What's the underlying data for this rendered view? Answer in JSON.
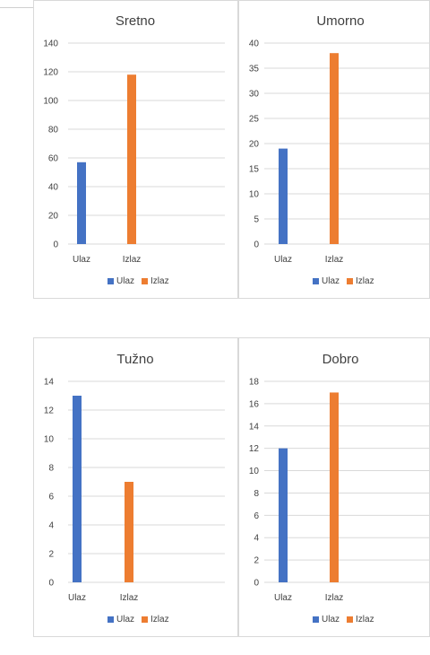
{
  "chart_data": [
    {
      "type": "bar",
      "title": "Sretno",
      "categories": [
        "Ulaz",
        "Izlaz"
      ],
      "values": [
        57,
        118
      ],
      "ylim": [
        0,
        140
      ],
      "yticks": [
        0,
        20,
        40,
        60,
        80,
        100,
        120,
        140
      ],
      "grid": true,
      "legend": "bottom"
    },
    {
      "type": "bar",
      "title": "Umorno",
      "categories": [
        "Ulaz",
        "Izlaz"
      ],
      "values": [
        19,
        38
      ],
      "ylim": [
        0,
        40
      ],
      "yticks": [
        0,
        5,
        10,
        15,
        20,
        25,
        30,
        35,
        40
      ],
      "grid": true,
      "legend": "bottom"
    },
    {
      "type": "bar",
      "title": "Tužno",
      "categories": [
        "Ulaz",
        "Izlaz"
      ],
      "values": [
        13,
        7
      ],
      "ylim": [
        0,
        14
      ],
      "yticks": [
        0,
        2,
        4,
        6,
        8,
        10,
        12,
        14
      ],
      "grid": true,
      "legend": "bottom"
    },
    {
      "type": "bar",
      "title": "Dobro",
      "categories": [
        "Ulaz",
        "Izlaz"
      ],
      "values": [
        12,
        17
      ],
      "ylim": [
        0,
        18
      ],
      "yticks": [
        0,
        2,
        4,
        6,
        8,
        10,
        12,
        14,
        16,
        18
      ],
      "grid": true,
      "legend": "bottom"
    }
  ],
  "legend": {
    "items": [
      "Ulaz",
      "Izlaz"
    ]
  },
  "colors": {
    "Ulaz": "#4472c4",
    "Izlaz": "#ed7d31",
    "grid": "#d9d9d9",
    "text": "#404040"
  }
}
